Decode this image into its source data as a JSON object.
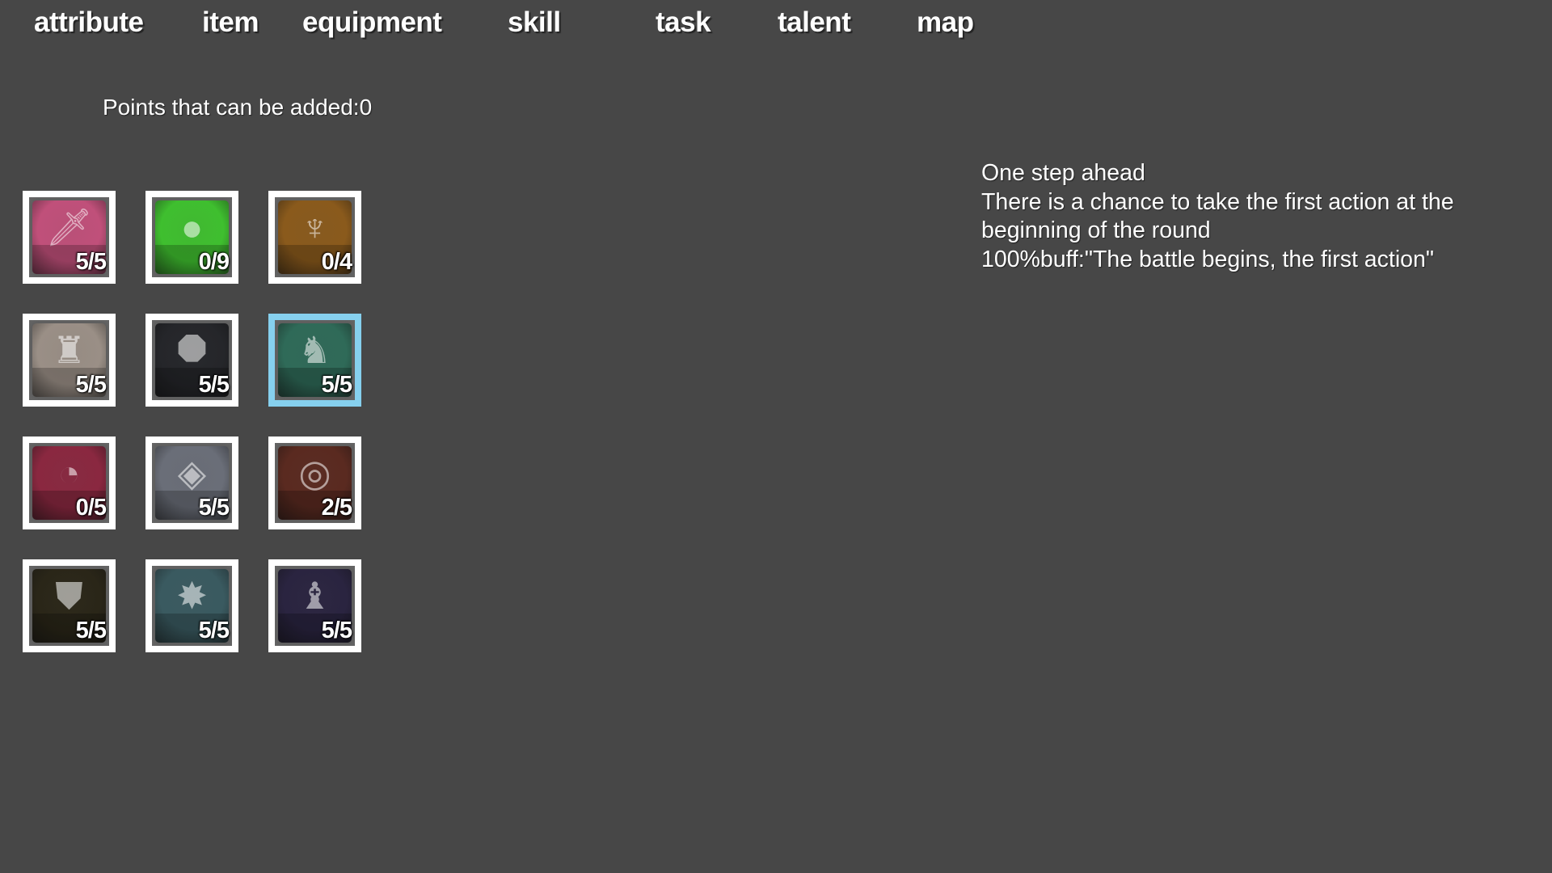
{
  "nav": {
    "tabs": [
      {
        "label": "attribute"
      },
      {
        "label": "item"
      },
      {
        "label": "equipment"
      },
      {
        "label": "skill"
      },
      {
        "label": "task"
      },
      {
        "label": "talent"
      },
      {
        "label": "map"
      }
    ]
  },
  "talent": {
    "points_label": "Points that can be added:0",
    "slots": [
      {
        "icon": "sword-target-icon",
        "level": "5/5",
        "color": "#c0507a"
      },
      {
        "icon": "green-flexing-figure-icon",
        "level": "0/9",
        "color": "#3fbf2f"
      },
      {
        "icon": "strongman-silhouette-icon",
        "level": "0/4",
        "color": "#8a5a1c"
      },
      {
        "icon": "armored-warrior-icon",
        "level": "5/5",
        "color": "#9a8f86"
      },
      {
        "icon": "octagon-ring-icon",
        "level": "5/5",
        "color": "#25262a"
      },
      {
        "icon": "charging-knight-icon",
        "level": "5/5",
        "color": "#2f6a58",
        "selected": true
      },
      {
        "icon": "open-mouth-icon",
        "level": "0/5",
        "color": "#8a2840"
      },
      {
        "icon": "crystal-sphere-icon",
        "level": "5/5",
        "color": "#6a6e78"
      },
      {
        "icon": "fire-ring-icon",
        "level": "2/5",
        "color": "#5a2a20"
      },
      {
        "icon": "golden-shield-icon",
        "level": "5/5",
        "color": "#2a2618"
      },
      {
        "icon": "lightning-burst-icon",
        "level": "5/5",
        "color": "#3a5a60"
      },
      {
        "icon": "dark-armor-icon",
        "level": "5/5",
        "color": "#2a2440"
      }
    ]
  },
  "description": {
    "title": "One step ahead",
    "lines": [
      "There is a chance to take the first action at the",
      "beginning of the round",
      "100%buff:\"The battle begins, the first action\""
    ]
  }
}
